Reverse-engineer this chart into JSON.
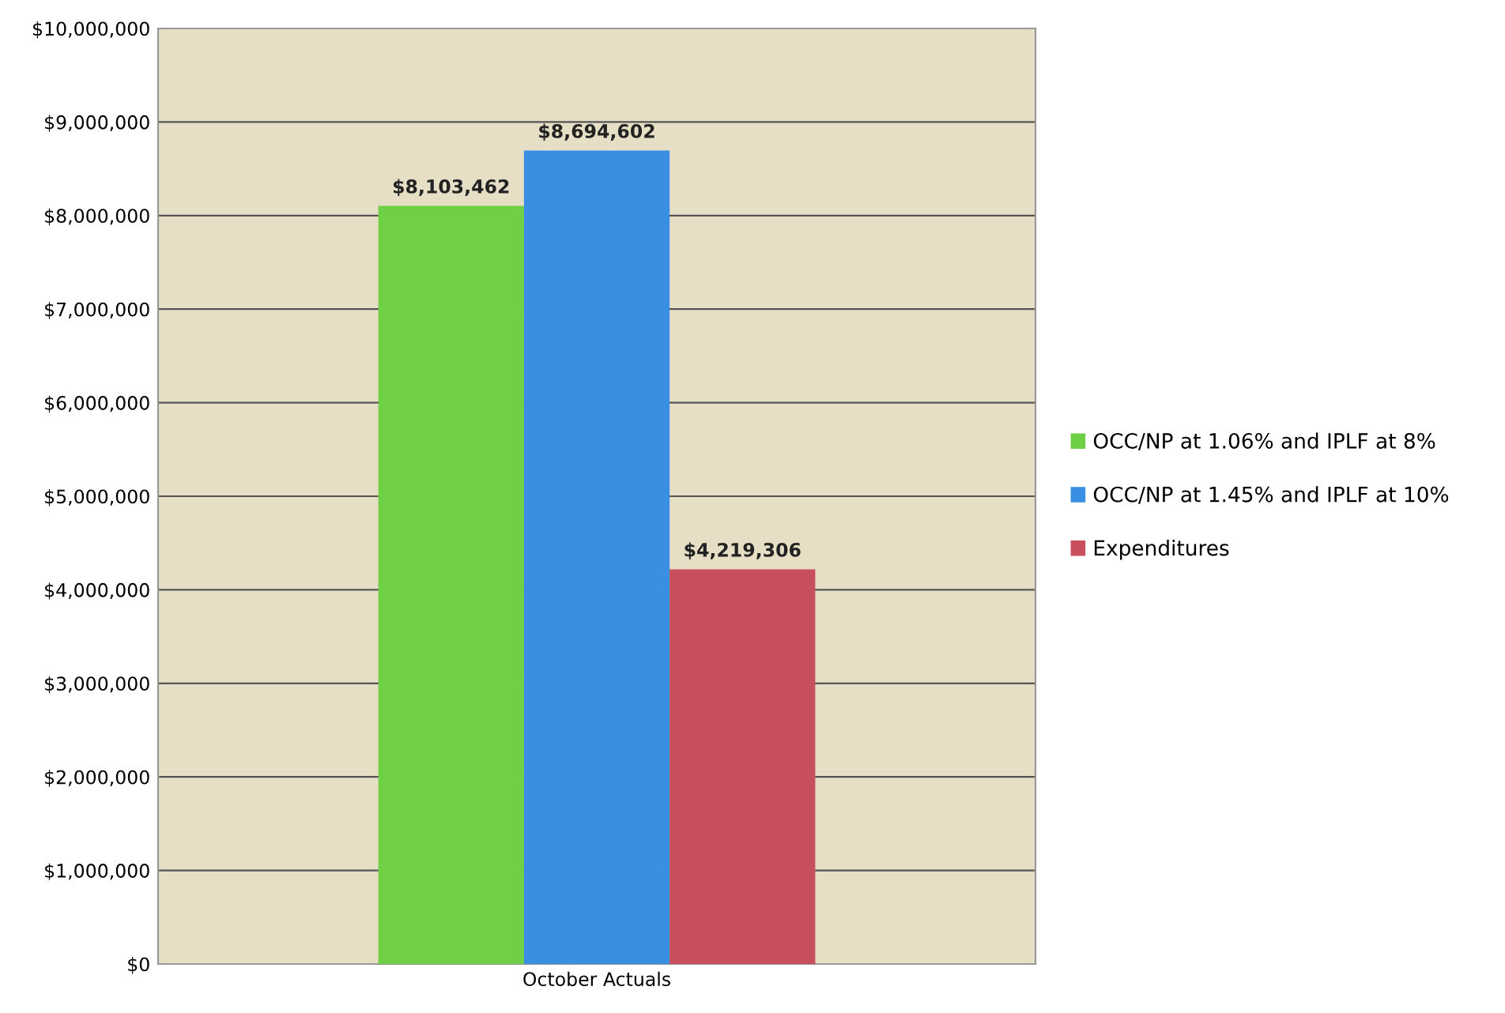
{
  "chart_data": {
    "type": "bar",
    "categories": [
      "October Actuals"
    ],
    "series": [
      {
        "name": "OCC/NP at 1.06% and IPLF at 8%",
        "color": "#6fd045",
        "values": [
          8103462
        ],
        "value_labels": [
          "$8,103,462"
        ]
      },
      {
        "name": "OCC/NP at 1.45% and IPLF at 10%",
        "color": "#3b8fe3",
        "values": [
          8694602
        ],
        "value_labels": [
          "$8,694,602"
        ]
      },
      {
        "name": "Expenditures",
        "color": "#c8505e",
        "values": [
          4219306
        ],
        "value_labels": [
          "$4,219,306"
        ]
      }
    ],
    "ylim": [
      0,
      10000000
    ],
    "yticks": [
      {
        "value": 0,
        "label": "$0"
      },
      {
        "value": 1000000,
        "label": "$1,000,000"
      },
      {
        "value": 2000000,
        "label": "$2,000,000"
      },
      {
        "value": 3000000,
        "label": "$3,000,000"
      },
      {
        "value": 4000000,
        "label": "$4,000,000"
      },
      {
        "value": 5000000,
        "label": "$5,000,000"
      },
      {
        "value": 6000000,
        "label": "$6,000,000"
      },
      {
        "value": 7000000,
        "label": "$7,000,000"
      },
      {
        "value": 8000000,
        "label": "$8,000,000"
      },
      {
        "value": 9000000,
        "label": "$9,000,000"
      },
      {
        "value": 10000000,
        "label": "$10,000,000"
      }
    ],
    "grid": "y",
    "legend": "right"
  }
}
